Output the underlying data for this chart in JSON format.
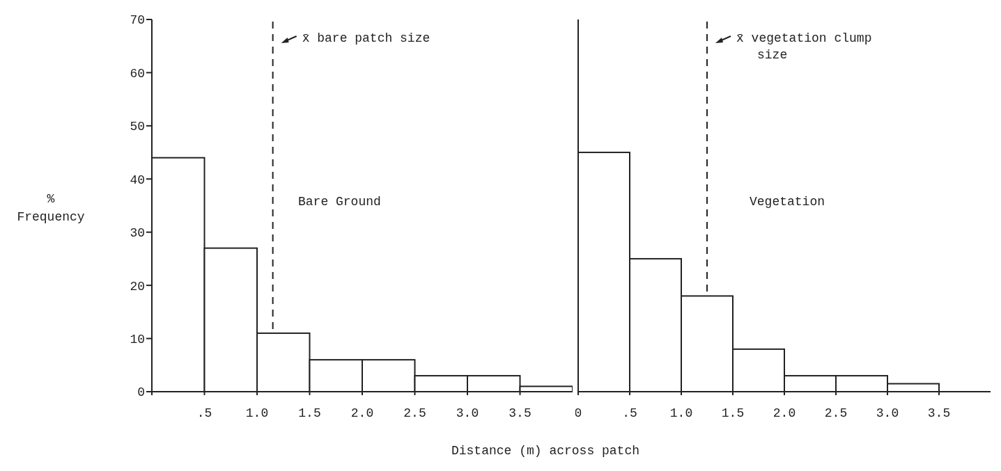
{
  "chart_data": [
    {
      "type": "histogram",
      "ylabel": "% Frequency",
      "xlabel": "Distance (m) across patch",
      "annotations": [
        "Bare Ground"
      ],
      "color": "#222222",
      "bins": [
        0,
        0.5,
        1.0,
        1.5,
        2.0,
        2.5,
        3.0,
        3.5,
        4.0
      ],
      "values": [
        44,
        27,
        11,
        6,
        6,
        3,
        3,
        1
      ],
      "xlim": [
        0,
        4
      ],
      "xticks": [
        {
          "value": 0,
          "label": null
        },
        {
          "value": 0.5,
          "label": ".5"
        },
        {
          "value": 1.0,
          "label": "1.0"
        },
        {
          "value": 1.5,
          "label": "1.5"
        },
        {
          "value": 2.0,
          "label": "2.0"
        },
        {
          "value": 2.5,
          "label": "2.5"
        },
        {
          "value": 3.0,
          "label": "3.0"
        },
        {
          "value": 3.5,
          "label": "3.5"
        }
      ],
      "ylim": [
        0,
        70
      ],
      "yticks": [
        0,
        10,
        20,
        30,
        40,
        50,
        60,
        70
      ],
      "ref_lines": [
        {
          "axis": "x",
          "value": 1.15,
          "label": "x̄ bare patch size",
          "line_style": "dashed"
        }
      ]
    },
    {
      "type": "histogram",
      "annotations": [
        "Vegetation"
      ],
      "color": "#222222",
      "bins": [
        0,
        0.5,
        1.0,
        1.5,
        2.0,
        2.5,
        3.0,
        3.5
      ],
      "values": [
        45,
        25,
        18,
        8,
        3,
        3,
        1.5
      ],
      "xlim": [
        0,
        4
      ],
      "xticks": [
        0,
        {
          "value": 0.5,
          "label": ".5"
        },
        {
          "value": 1.0,
          "label": "1.0"
        },
        {
          "value": 1.5,
          "label": "1.5"
        },
        {
          "value": 2.0,
          "label": "2.0"
        },
        {
          "value": 2.5,
          "label": "2.5"
        },
        {
          "value": 3.0,
          "label": "3.0"
        },
        {
          "value": 3.5,
          "label": "3.5"
        }
      ],
      "ylim": [
        0,
        70
      ],
      "yticks": [
        0,
        10,
        20,
        30,
        40,
        50,
        60,
        70
      ],
      "tick_labels": "x",
      "ref_lines": [
        {
          "axis": "x",
          "value": 1.25,
          "label": "x̄ vegetation clump size",
          "line_style": "dashed"
        }
      ]
    }
  ]
}
